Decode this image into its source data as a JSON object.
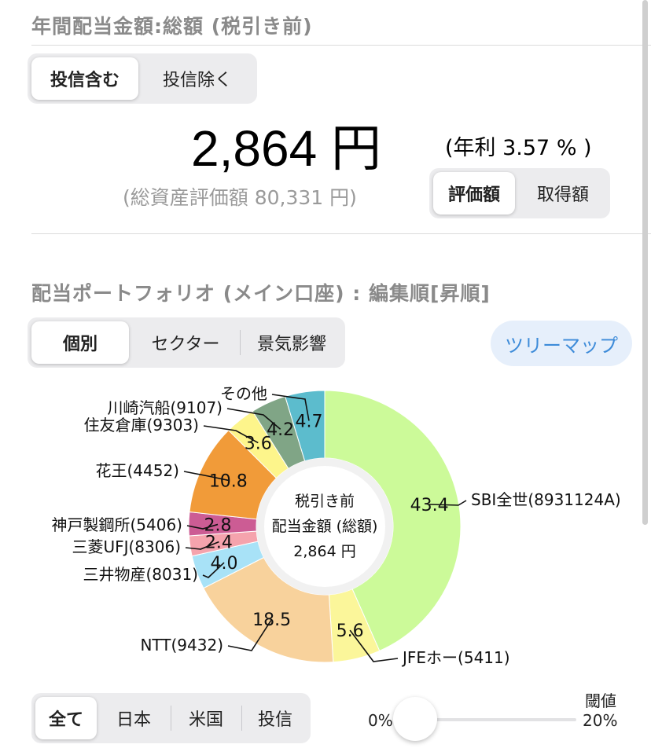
{
  "annual": {
    "title": "年間配当金額:総額 (税引き前)",
    "tabs": [
      "投信含む",
      "投信除く"
    ],
    "amount": "2,864 円",
    "yield": "(年利 3.57 % )",
    "total_assets": "(総資産評価額 80,331 円)",
    "basis_tabs": [
      "評価額",
      "取得額"
    ]
  },
  "portfolio": {
    "title": "配当ポートフォリオ (メイン口座) : 編集順[昇順]",
    "tabs": [
      "個別",
      "セクター",
      "景気影響"
    ],
    "treemap_label": "ツリーマップ"
  },
  "chart_data": {
    "type": "pie",
    "center_text": [
      "税引き前",
      "配当金額 (総額)",
      "2,864 円"
    ],
    "slices": [
      {
        "name": "SBI全世(8931124A)",
        "value": 43.4,
        "color": "#ccfa99"
      },
      {
        "name": "JFEホー(5411)",
        "value": 5.6,
        "color": "#fbf69a"
      },
      {
        "name": "NTT(9432)",
        "value": 18.5,
        "color": "#f8d29c"
      },
      {
        "name": "三井物産(8031)",
        "value": 4.0,
        "color": "#a8e2f7"
      },
      {
        "name": "三菱UFJ(8306)",
        "value": 2.4,
        "color": "#f5a3ad"
      },
      {
        "name": "神戸製鋼所(5406)",
        "value": 2.8,
        "color": "#cc5c94"
      },
      {
        "name": "花王(4452)",
        "value": 10.8,
        "color": "#f19b39"
      },
      {
        "name": "住友倉庫(9303)",
        "value": 3.6,
        "color": "#fdf58b"
      },
      {
        "name": "川崎汽船(9107)",
        "value": 4.2,
        "color": "#80a586"
      },
      {
        "name": "その他",
        "value": 4.7,
        "color": "#5cbccd"
      }
    ]
  },
  "filter": {
    "tabs": [
      "全て",
      "日本",
      "米国",
      "投信"
    ],
    "threshold_label": "閾値",
    "threshold_min": "0%",
    "threshold_max": "20%",
    "threshold_value": 0.06
  }
}
